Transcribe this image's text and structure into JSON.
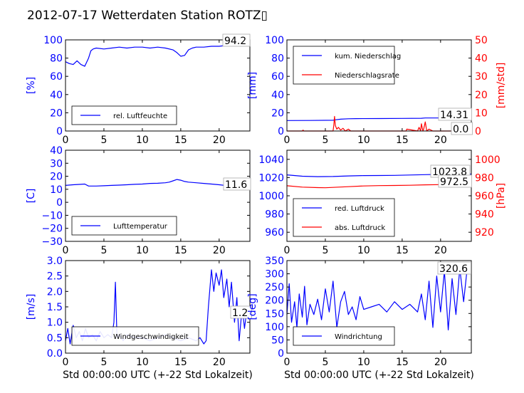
{
  "title": "2012-07-17 Wetterdaten Station ROTZ▯",
  "colors": {
    "primary": "#0000ff",
    "secondary": "#ff0000",
    "axis": "#000000"
  },
  "chart_data": [
    {
      "id": "humidity",
      "type": "line",
      "ylabel": "[%]",
      "xlabel": "",
      "xlim": [
        0,
        24
      ],
      "ylim": [
        0,
        100
      ],
      "xticks": [
        "0",
        "5",
        "10",
        "15",
        "20"
      ],
      "yticks": [
        "0",
        "20",
        "40",
        "60",
        "80",
        "100"
      ],
      "legend": {
        "placement": "lower-left",
        "entries": [
          "rel. Luftfeuchte"
        ]
      },
      "annotations": [
        {
          "text": "94.2",
          "placement": "top-right"
        }
      ],
      "series": [
        {
          "name": "rel. Luftfeuchte",
          "color": "#0000ff",
          "x": [
            0,
            0.5,
            1,
            1.5,
            2,
            2.5,
            3,
            3.3,
            3.6,
            4,
            5,
            6,
            7,
            8,
            9,
            10,
            11,
            12,
            13,
            14,
            14.5,
            15,
            15.5,
            16,
            16.5,
            17,
            18,
            19,
            20,
            21,
            22,
            23,
            24
          ],
          "y": [
            76,
            74,
            73,
            77,
            73,
            71,
            80,
            88,
            90,
            91,
            90,
            91,
            92,
            91,
            92,
            92,
            91,
            92,
            91,
            89,
            86,
            82,
            83,
            89,
            91,
            92,
            92,
            93,
            93,
            94,
            94,
            94,
            94
          ]
        }
      ]
    },
    {
      "id": "precipitation",
      "type": "line",
      "ylabel": "[mm]",
      "y2label": "[mm/std]",
      "xlabel": "",
      "xlim": [
        0,
        24
      ],
      "ylim": [
        0,
        100
      ],
      "y2lim": [
        0,
        50
      ],
      "xticks": [
        "0",
        "5",
        "10",
        "15",
        "20"
      ],
      "yticks": [
        "0",
        "20",
        "40",
        "60",
        "80",
        "100"
      ],
      "y2ticks": [
        "0",
        "10",
        "20",
        "30",
        "40",
        "50"
      ],
      "legend": {
        "placement": "upper-left",
        "entries": [
          "kum. Niederschlag",
          "Niederschlagsrate"
        ]
      },
      "annotations": [
        {
          "text": "14.31",
          "placement": "right"
        },
        {
          "text": "0.0",
          "placement": "bottom-right"
        }
      ],
      "series": [
        {
          "name": "kum. Niederschlag",
          "axis": "left",
          "color": "#0000ff",
          "x": [
            0,
            3,
            6,
            6.3,
            7,
            8,
            9,
            12,
            15,
            17.5,
            18,
            19,
            20,
            22,
            24
          ],
          "y": [
            11.5,
            11.6,
            11.8,
            12.3,
            13,
            13.4,
            13.6,
            13.7,
            13.8,
            14,
            14.3,
            14.3,
            14.31,
            14.31,
            14.31
          ]
        },
        {
          "name": "Niederschlagsrate",
          "axis": "right",
          "color": "#ff0000",
          "x": [
            0,
            2,
            2.1,
            2.2,
            5.5,
            6,
            6.1,
            6.2,
            6.3,
            6.5,
            6.7,
            7,
            7.3,
            7.6,
            8,
            8.3,
            9,
            10,
            15,
            15.5,
            15.6,
            17,
            17.2,
            17.4,
            17.5,
            17.7,
            17.8,
            18,
            18.2,
            18.5,
            19,
            24
          ],
          "y": [
            0,
            0,
            0.5,
            0,
            0,
            0,
            3,
            8,
            3,
            1,
            2,
            0.5,
            1.5,
            0,
            1,
            0,
            0,
            0,
            0,
            0,
            1,
            0,
            2,
            0,
            4,
            0,
            1,
            5,
            0,
            1,
            0,
            0
          ]
        }
      ]
    },
    {
      "id": "temperature",
      "type": "line",
      "ylabel": "[C]",
      "xlabel": "",
      "xlim": [
        0,
        24
      ],
      "ylim": [
        -30,
        40
      ],
      "xticks": [
        "0",
        "5",
        "10",
        "15",
        "20"
      ],
      "yticks": [
        "−30",
        "−20",
        "−10",
        "0",
        "10",
        "20",
        "30",
        "40"
      ],
      "legend": {
        "placement": "lower-left",
        "entries": [
          "Lufttemperatur"
        ]
      },
      "annotations": [
        {
          "text": "11.6",
          "placement": "right"
        }
      ],
      "series": [
        {
          "name": "Lufttemperatur",
          "color": "#0000ff",
          "x": [
            0,
            1,
            2,
            2.5,
            3,
            4,
            5,
            6,
            7,
            8,
            9,
            10,
            11,
            12,
            13,
            13.5,
            14,
            14.5,
            15,
            15.5,
            16,
            17,
            18,
            19,
            20,
            21,
            22,
            23,
            24
          ],
          "y": [
            13,
            13.5,
            13.8,
            14,
            12.5,
            12.5,
            12.7,
            13,
            13.2,
            13.5,
            13.8,
            14,
            14.5,
            14.6,
            15,
            15.5,
            16.5,
            17.5,
            17,
            16,
            15.5,
            15,
            14.5,
            14,
            13.5,
            12.8,
            12,
            11.8,
            11.6
          ]
        }
      ]
    },
    {
      "id": "pressure",
      "type": "line",
      "ylabel": "",
      "y2label": "[hPa]",
      "xlabel": "",
      "xlim": [
        0,
        24
      ],
      "ylim": [
        950,
        1050
      ],
      "y2lim": [
        910,
        1010
      ],
      "xticks": [
        "0",
        "5",
        "10",
        "15",
        "20"
      ],
      "yticks": [
        "960",
        "980",
        "1000",
        "1020",
        "1040"
      ],
      "y2ticks": [
        "920",
        "940",
        "960",
        "980",
        "1000"
      ],
      "legend": {
        "placement": "lower-left",
        "entries": [
          "red. Luftdruck",
          "abs. Luftdruck"
        ]
      },
      "annotations": [
        {
          "text": "1023.8",
          "placement": "right"
        },
        {
          "text": "972.5",
          "placement": "right"
        }
      ],
      "series": [
        {
          "name": "red. Luftdruck",
          "axis": "left",
          "color": "#0000ff",
          "x": [
            0,
            2,
            4,
            6,
            8,
            10,
            12,
            14,
            16,
            18,
            20,
            22,
            24
          ],
          "y": [
            1023,
            1021.5,
            1021,
            1021.2,
            1021.8,
            1022.2,
            1022.3,
            1022.4,
            1022.8,
            1023.2,
            1023.5,
            1023.7,
            1023.8
          ]
        },
        {
          "name": "abs. Luftdruck",
          "axis": "right",
          "color": "#ff0000",
          "x": [
            0,
            2,
            4,
            5,
            6,
            8,
            10,
            12,
            14,
            16,
            18,
            20,
            22,
            24
          ],
          "y": [
            971,
            969.5,
            969,
            968.8,
            969.2,
            970,
            970.8,
            971.2,
            971.3,
            971.6,
            972,
            972.3,
            972.5,
            972.5
          ]
        }
      ]
    },
    {
      "id": "wind-speed",
      "type": "line",
      "ylabel": "[m/s]",
      "xlabel": "Std 00:00:00 UTC (+-22 Std Lokalzeit)",
      "xlim": [
        0,
        24
      ],
      "ylim": [
        0,
        3.0
      ],
      "xticks": [
        "0",
        "5",
        "10",
        "15",
        "20"
      ],
      "yticks": [
        "0.0",
        "0.5",
        "1.0",
        "1.5",
        "2.0",
        "2.5",
        "3.0"
      ],
      "legend": {
        "placement": "lower-left",
        "entries": [
          "Windgeschwindigkeit"
        ]
      },
      "annotations": [
        {
          "text": "1.2",
          "placement": "right"
        }
      ],
      "series": [
        {
          "name": "Windgeschwindigkeit",
          "color": "#0000ff",
          "x": [
            0,
            0.3,
            0.6,
            1,
            1.4,
            1.8,
            2.2,
            2.6,
            3,
            3.5,
            4,
            4.5,
            5,
            5.5,
            6,
            6.3,
            6.5,
            6.7,
            7,
            7.5,
            8,
            9,
            10,
            11,
            12,
            13,
            14,
            15,
            16,
            17,
            17.5,
            18,
            18.3,
            18.6,
            19,
            19.3,
            19.6,
            20,
            20.3,
            20.6,
            21,
            21.3,
            21.6,
            22,
            22.3,
            22.6,
            23,
            23.3,
            23.6,
            24
          ],
          "y": [
            0.4,
            0.8,
            0.3,
            0.9,
            0.5,
            0.7,
            0.4,
            0.8,
            0.5,
            0.6,
            0.4,
            0.7,
            0.5,
            0.6,
            0.5,
            1.0,
            2.3,
            0.5,
            0.6,
            0.4,
            0.6,
            0.5,
            0.5,
            0.4,
            0.5,
            0.6,
            0.5,
            0.4,
            0.5,
            0.4,
            0.5,
            0.3,
            0.4,
            1.5,
            2.7,
            2.0,
            2.6,
            2.2,
            2.7,
            1.8,
            2.4,
            1.5,
            2.3,
            1.0,
            1.8,
            0.4,
            1.5,
            0.8,
            1.4,
            1.2
          ]
        }
      ]
    },
    {
      "id": "wind-direction",
      "type": "line",
      "ylabel": "[deg]",
      "xlabel": "Std 00:00:00 UTC (+-22 Std Lokalzeit)",
      "xlim": [
        0,
        24
      ],
      "ylim": [
        0,
        360
      ],
      "xticks": [
        "0",
        "5",
        "10",
        "15",
        "20"
      ],
      "yticks": [
        "0",
        "50",
        "100",
        "150",
        "200",
        "250",
        "300",
        "350"
      ],
      "legend": {
        "placement": "lower-left",
        "entries": [
          "Windrichtung"
        ]
      },
      "annotations": [
        {
          "text": "320.6",
          "placement": "top-right"
        }
      ],
      "series": [
        {
          "name": "Windrichtung",
          "color": "#0000ff",
          "x": [
            0,
            0.3,
            0.6,
            1,
            1.3,
            1.6,
            2,
            2.3,
            2.6,
            3,
            3.5,
            4,
            4.5,
            5,
            5.5,
            6,
            6.5,
            7,
            7.5,
            8,
            8.5,
            9,
            9.5,
            10,
            11,
            12,
            13,
            14,
            15,
            16,
            17,
            17.5,
            18,
            18.5,
            19,
            19.5,
            20,
            20.5,
            21,
            21.5,
            22,
            22.5,
            23,
            23.5,
            24
          ],
          "y": [
            150,
            270,
            120,
            200,
            100,
            230,
            140,
            260,
            110,
            190,
            150,
            210,
            130,
            250,
            160,
            280,
            100,
            200,
            240,
            150,
            180,
            130,
            220,
            170,
            180,
            190,
            160,
            200,
            170,
            190,
            160,
            230,
            130,
            280,
            100,
            300,
            160,
            320,
            90,
            290,
            150,
            330,
            200,
            340,
            320.6
          ]
        }
      ]
    }
  ]
}
